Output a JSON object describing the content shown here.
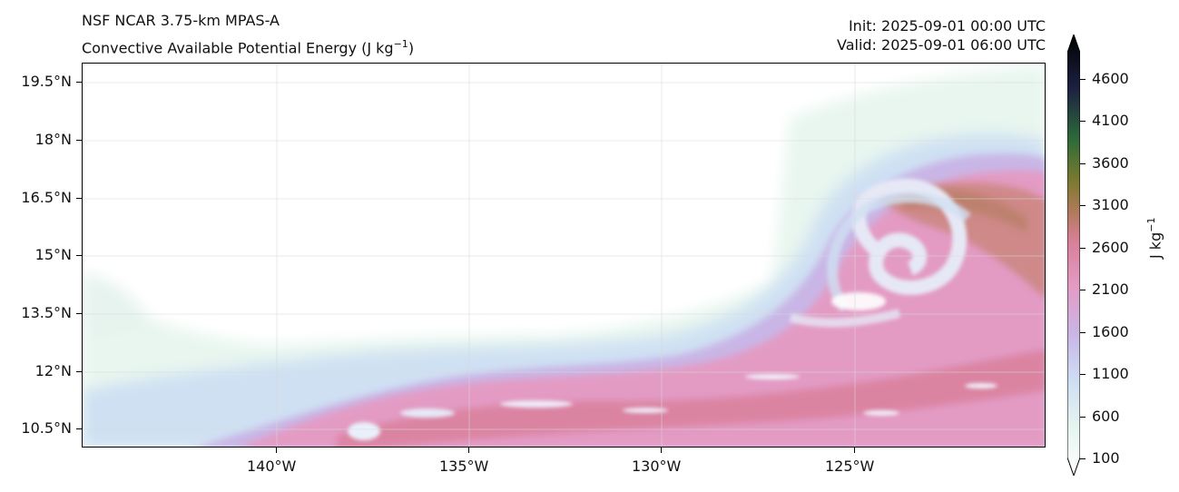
{
  "header": {
    "model": "NSF NCAR 3.75-km MPAS-A",
    "field_name": "Convective Available Potential Energy (J kg",
    "field_unit_exp": "−1",
    "field_close": ")",
    "init": "Init: 2025-09-01 00:00 UTC",
    "valid": "Valid: 2025-09-01 06:00 UTC"
  },
  "map": {
    "lat_labels": [
      "19.5°N",
      "18°N",
      "16.5°N",
      "15°N",
      "13.5°N",
      "12°N",
      "10.5°N"
    ],
    "lon_labels": [
      "140°W",
      "135°W",
      "130°W",
      "125°W"
    ]
  },
  "colorbar": {
    "unit": "J kg",
    "unit_exp": "−1",
    "ticks": [
      "4600",
      "4100",
      "3600",
      "3100",
      "2600",
      "2100",
      "1600",
      "1100",
      "600",
      "100"
    ],
    "colors": {
      "low": "#ffffff",
      "mint": "#e8f6ef",
      "lightblue": "#cfe0f3",
      "lavender": "#c9b6e6",
      "pink": "#e39bc4",
      "rose": "#d97f9a",
      "brown": "#b07a5a",
      "olive": "#7a7a2e",
      "green": "#2f6b3a",
      "navy": "#1c2040",
      "black": "#000000"
    }
  }
}
